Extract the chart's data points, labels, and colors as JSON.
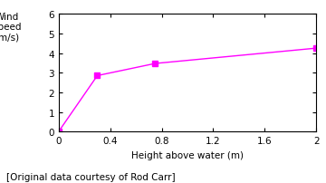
{
  "x": [
    0,
    0.3,
    0.75,
    2.0
  ],
  "y": [
    0,
    2.85,
    3.47,
    4.25
  ],
  "line_color": "#ff00ff",
  "marker": "s",
  "marker_color": "#ff00ff",
  "marker_size": 5,
  "xlabel": "Height above water (m)",
  "ylabel": "Wind\nspeed\n(m/s)",
  "xlim": [
    0,
    2.0
  ],
  "ylim": [
    0,
    6
  ],
  "xticks": [
    0,
    0.4,
    0.8,
    1.2,
    1.6,
    2.0
  ],
  "yticks": [
    0,
    1,
    2,
    3,
    4,
    5,
    6
  ],
  "footnote": "[Original data courtesy of Rod Carr]",
  "background_color": "#ffffff"
}
